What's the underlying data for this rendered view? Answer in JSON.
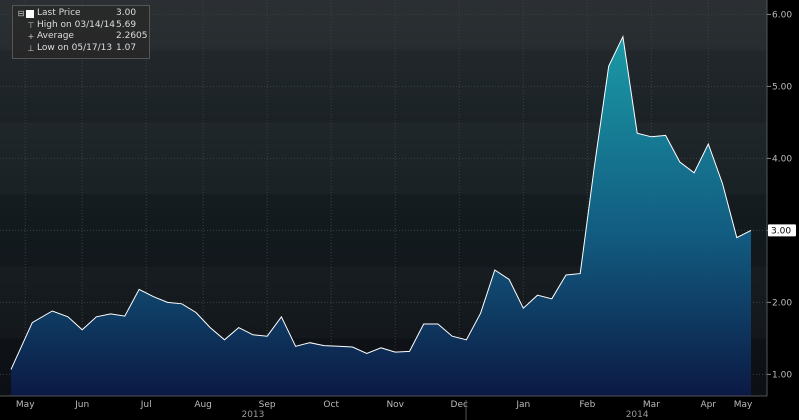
{
  "legend": {
    "last_price_label": "Last Price",
    "last_price_value": "3.00",
    "high_label": "High on 03/14/14",
    "high_value": "5.69",
    "average_label": "Average",
    "average_value": "2.2605",
    "low_label": "Low on 05/17/13",
    "low_value": "1.07"
  },
  "last_price_tag": "3.00",
  "chart_data": {
    "type": "area",
    "ylim": [
      0.7,
      6.2
    ],
    "yticks": [
      "6.00",
      "5.00",
      "4.00",
      "3.00",
      "2.00",
      "1.00"
    ],
    "ytick_values": [
      6,
      5,
      4,
      3,
      2,
      1
    ],
    "xlim": [
      0,
      52
    ],
    "month_labels": [
      "May",
      "Jun",
      "Jul",
      "Aug",
      "Sep",
      "Oct",
      "Nov",
      "Dec",
      "Jan",
      "Feb",
      "Mar",
      "Apr",
      "May"
    ],
    "month_positions": [
      1,
      5,
      9.5,
      13.5,
      18,
      22.5,
      27,
      31.5,
      36,
      40.5,
      45,
      49,
      53.5
    ],
    "year_labels": [
      "2013",
      "2014"
    ],
    "year_positions": [
      17,
      44
    ],
    "x": [
      0,
      1.5,
      2.9,
      4,
      5,
      6,
      7,
      8,
      9,
      10,
      11,
      12,
      13,
      14,
      15,
      16,
      17,
      18,
      19,
      20,
      21,
      22,
      23,
      24,
      25,
      26,
      27,
      28,
      29,
      30,
      31,
      32,
      33,
      34,
      35,
      36,
      37,
      38,
      39,
      40,
      41,
      42,
      43,
      44,
      45,
      46,
      47,
      48,
      49,
      50,
      51,
      52,
      53
    ],
    "values": [
      1.07,
      1.72,
      1.88,
      1.8,
      1.62,
      1.8,
      1.84,
      1.81,
      2.18,
      2.08,
      2.0,
      1.98,
      1.86,
      1.65,
      1.48,
      1.65,
      1.55,
      1.53,
      1.8,
      1.39,
      1.44,
      1.4,
      1.39,
      1.38,
      1.29,
      1.37,
      1.31,
      1.32,
      1.7,
      1.7,
      1.53,
      1.48,
      1.85,
      2.45,
      2.32,
      1.92,
      2.1,
      2.05,
      2.38,
      2.4,
      3.9,
      5.28,
      5.69,
      4.35,
      4.3,
      4.32,
      3.95,
      3.8,
      4.2,
      3.65,
      2.9,
      3.0,
      3.0
    ],
    "colors": {
      "fill_top": "#1aa0ad",
      "fill_bottom": "#0b1a46",
      "line": "#ffffff",
      "tag_bg": "#ffffff",
      "tag_fg": "#000000"
    }
  }
}
